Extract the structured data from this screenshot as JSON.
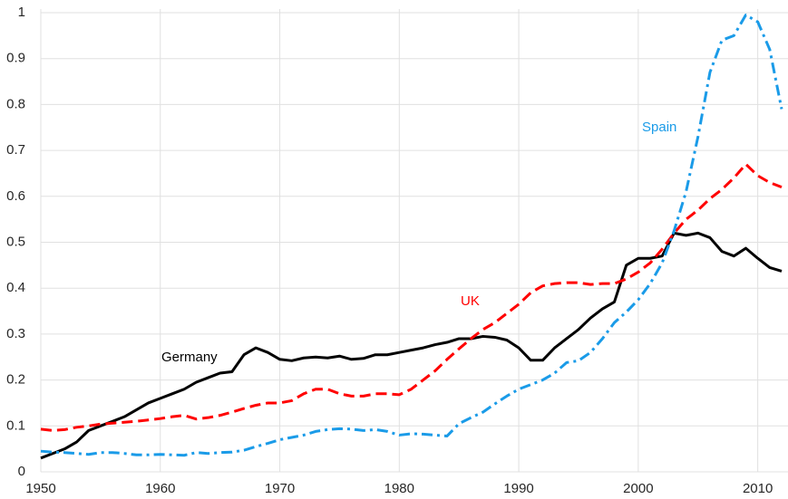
{
  "chart_data": {
    "type": "line",
    "x": [
      1950,
      1951,
      1952,
      1953,
      1954,
      1955,
      1956,
      1957,
      1958,
      1959,
      1960,
      1961,
      1962,
      1963,
      1964,
      1965,
      1966,
      1967,
      1968,
      1969,
      1970,
      1971,
      1972,
      1973,
      1974,
      1975,
      1976,
      1977,
      1978,
      1979,
      1980,
      1981,
      1982,
      1983,
      1984,
      1985,
      1986,
      1987,
      1988,
      1989,
      1990,
      1991,
      1992,
      1993,
      1994,
      1995,
      1996,
      1997,
      1998,
      1999,
      2000,
      2001,
      2002,
      2003,
      2004,
      2005,
      2006,
      2007,
      2008,
      2009,
      2010,
      2011,
      2012
    ],
    "series": [
      {
        "name": "Germany",
        "color": "#000000",
        "dash": "solid",
        "values": [
          0.03,
          0.04,
          0.05,
          0.065,
          0.09,
          0.1,
          0.11,
          0.12,
          0.135,
          0.15,
          0.16,
          0.17,
          0.18,
          0.195,
          0.205,
          0.215,
          0.218,
          0.255,
          0.27,
          0.26,
          0.245,
          0.242,
          0.248,
          0.25,
          0.248,
          0.252,
          0.245,
          0.247,
          0.255,
          0.255,
          0.26,
          0.265,
          0.27,
          0.277,
          0.282,
          0.29,
          0.29,
          0.295,
          0.293,
          0.287,
          0.27,
          0.243,
          0.243,
          0.27,
          0.29,
          0.31,
          0.335,
          0.355,
          0.37,
          0.45,
          0.465,
          0.465,
          0.47,
          0.52,
          0.515,
          0.52,
          0.51,
          0.48,
          0.47,
          0.487,
          0.465,
          0.445,
          0.437
        ]
      },
      {
        "name": "UK",
        "color": "#ff0000",
        "dash": "dashed",
        "values": [
          0.093,
          0.09,
          0.092,
          0.097,
          0.1,
          0.104,
          0.106,
          0.108,
          0.11,
          0.113,
          0.116,
          0.12,
          0.123,
          0.115,
          0.118,
          0.123,
          0.13,
          0.138,
          0.145,
          0.15,
          0.15,
          0.155,
          0.17,
          0.18,
          0.18,
          0.17,
          0.165,
          0.165,
          0.17,
          0.17,
          0.168,
          0.18,
          0.2,
          0.22,
          0.245,
          0.268,
          0.29,
          0.31,
          0.325,
          0.345,
          0.365,
          0.39,
          0.405,
          0.41,
          0.412,
          0.412,
          0.408,
          0.41,
          0.41,
          0.42,
          0.435,
          0.455,
          0.485,
          0.52,
          0.55,
          0.57,
          0.595,
          0.615,
          0.64,
          0.67,
          0.645,
          0.63,
          0.62
        ]
      },
      {
        "name": "Spain",
        "color": "#1a9be8",
        "dash": "dashdot",
        "values": [
          0.045,
          0.043,
          0.042,
          0.04,
          0.038,
          0.042,
          0.042,
          0.04,
          0.037,
          0.037,
          0.038,
          0.037,
          0.036,
          0.042,
          0.04,
          0.042,
          0.043,
          0.047,
          0.055,
          0.062,
          0.07,
          0.075,
          0.08,
          0.088,
          0.092,
          0.094,
          0.093,
          0.09,
          0.092,
          0.088,
          0.08,
          0.083,
          0.082,
          0.08,
          0.078,
          0.105,
          0.118,
          0.13,
          0.148,
          0.165,
          0.18,
          0.19,
          0.2,
          0.215,
          0.238,
          0.242,
          0.26,
          0.29,
          0.325,
          0.348,
          0.375,
          0.41,
          0.455,
          0.525,
          0.61,
          0.73,
          0.87,
          0.94,
          0.95,
          0.995,
          0.98,
          0.92,
          0.79
        ]
      }
    ],
    "xlim": [
      1950,
      2012
    ],
    "ylim": [
      0,
      1
    ],
    "xticks": [
      1950,
      1960,
      1970,
      1980,
      1990,
      2000,
      2010
    ],
    "yticks": [
      0,
      0.1,
      0.2,
      0.3,
      0.4,
      0.5,
      0.6,
      0.7,
      0.8,
      0.9,
      1
    ],
    "grid": true
  }
}
